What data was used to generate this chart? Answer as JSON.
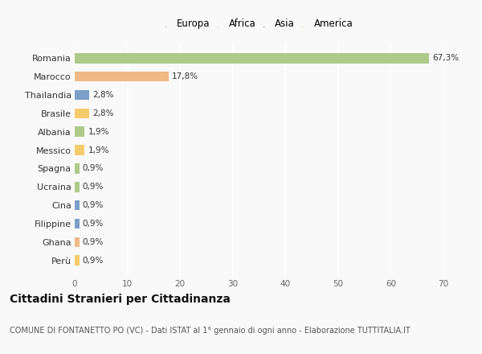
{
  "categories": [
    "Romania",
    "Marocco",
    "Thailandia",
    "Brasile",
    "Albania",
    "Messico",
    "Spagna",
    "Ucraina",
    "Cina",
    "Filippine",
    "Ghana",
    "Perù"
  ],
  "values": [
    67.3,
    17.8,
    2.8,
    2.8,
    1.9,
    1.9,
    0.9,
    0.9,
    0.9,
    0.9,
    0.9,
    0.9
  ],
  "labels": [
    "67,3%",
    "17,8%",
    "2,8%",
    "2,8%",
    "1,9%",
    "1,9%",
    "0,9%",
    "0,9%",
    "0,9%",
    "0,9%",
    "0,9%",
    "0,9%"
  ],
  "colors": [
    "#aec98a",
    "#f0b985",
    "#7b9fc7",
    "#f5cc6b",
    "#aec98a",
    "#f5cc6b",
    "#aec98a",
    "#aec98a",
    "#7b9fc7",
    "#7b9fc7",
    "#f0b985",
    "#f5cc6b"
  ],
  "legend_labels": [
    "Europa",
    "Africa",
    "Asia",
    "America"
  ],
  "legend_colors": [
    "#aec98a",
    "#f0b985",
    "#5b7fad",
    "#f5cc6b"
  ],
  "title": "Cittadini Stranieri per Cittadinanza",
  "subtitle": "COMUNE DI FONTANETTO PO (VC) - Dati ISTAT al 1° gennaio di ogni anno - Elaborazione TUTTITALIA.IT",
  "xlim": [
    0,
    70
  ],
  "xticks": [
    0,
    10,
    20,
    30,
    40,
    50,
    60,
    70
  ],
  "background_color": "#f9f9f9",
  "grid_color": "#ffffff",
  "title_fontsize": 10,
  "subtitle_fontsize": 7,
  "bar_height": 0.55
}
